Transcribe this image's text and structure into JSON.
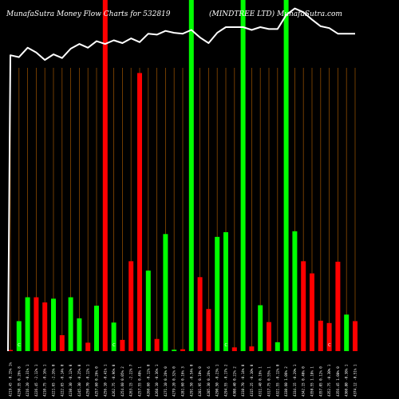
{
  "header": {
    "left_title": "MunafaSutra  Money Flow  Charts for 532819",
    "right_title": "(MINDTREE LTD) MunafaSutra.com"
  },
  "colors": {
    "background": "#000000",
    "up": "#00ff00",
    "down": "#ff0000",
    "grid": "#8b4a00",
    "line": "#ffffff"
  },
  "chart_data": {
    "type": "bar",
    "categories": [
      "4219.45 -0.15% 1%",
      "4230.35 0.26% 8",
      "4216.20 -0.31% 1",
      "4226.45 -2.12% 1",
      "4210.75 -0.16% 1",
      "4221.65 -2.26% 0",
      "4222.65 -0.14% 0",
      "4230.30 -0.12% 0",
      "4245.30 -0.25% 0",
      "4250.70 -0.12% 1",
      "4257.60 0.26% 0",
      "4256.10 -0.41% 1",
      "4262.75 -0.96% 0",
      "4254.60 0.05% 2",
      "4263.15 -2.22% 7",
      "4257.55 0.48% 1",
      "4260.60 -0.12% 0",
      "4268.10 -0.36% 1",
      "4271.10 0.26% 0",
      "4279.20 0.32% 0",
      "4281.60 0.16% 3",
      "4291.50 -0.54% 0",
      "4281.95 0.10% 0",
      "4285.30 0.26% 6",
      "4290.50 -0.23% 1",
      "4294.55 -0.17% 2",
      "4308.40 0.22% 2",
      "4310.70 -0.14% 0",
      "4315.25 -0.10% 0",
      "4311.40 0.16% 1",
      "4317.75 0.55% 1",
      "4321.55 -0.12% 0",
      "4330.60 1.06% 2",
      "4334.15 -0.29% 1",
      "4342.15 0.40% 0",
      "4350.55 1.18% 1",
      "4357.05 0.12% 0",
      "4352.75 -0.30% 1",
      "4356.45 1.08% 0",
      "4360.80 -0.38% 1",
      "4374.12 -0.51% 1"
    ],
    "series": [
      {
        "values": [
          0.12,
          3.2,
          5.75,
          5.75,
          5.2,
          5.6,
          1.7,
          5.75,
          3.5,
          0.9,
          4.85,
          37.5,
          3.05,
          1.2,
          9.6,
          29.7,
          8.6,
          1.3,
          12.5,
          0.15,
          0.2,
          37.5,
          7.9,
          4.5,
          12.2,
          12.7,
          0.4,
          37.5,
          0.5,
          4.9,
          3.1,
          0.95,
          37.5,
          12.8,
          9.6,
          8.3,
          3.25,
          3.0,
          9.55,
          3.9,
          3.2
        ],
        "direction": [
          "down",
          "up",
          "up",
          "down",
          "down",
          "up",
          "down",
          "up",
          "up",
          "down",
          "up",
          "down",
          "up",
          "down",
          "down",
          "down",
          "up",
          "down",
          "up",
          "up",
          "down",
          "up",
          "down",
          "down",
          "up",
          "up",
          "down",
          "up",
          "down",
          "up",
          "down",
          "up",
          "up",
          "up",
          "down",
          "down",
          "down",
          "down",
          "down",
          "up",
          "down"
        ]
      },
      {
        "values": [
          31.6,
          31.4,
          32.4,
          31.9,
          31.1,
          31.7,
          31.3,
          32.3,
          32.8,
          32.4,
          33.1,
          32.8,
          33.2,
          32.9,
          33.4,
          33.0,
          33.9,
          33.8,
          34.2,
          34.0,
          33.9,
          34.3,
          33.5,
          32.9,
          34.0,
          34.6,
          34.6,
          34.6,
          34.3,
          34.6,
          34.4,
          34.4,
          35.9,
          36.6,
          36.2,
          35.4,
          34.7,
          34.5,
          33.9,
          33.9,
          33.9
        ]
      }
    ],
    "ylim": [
      0,
      37.5
    ],
    "grid": true,
    "circle_markers": {
      "label": "C",
      "indices": [
        1,
        12,
        25,
        37
      ],
      "position": "bottom"
    }
  }
}
